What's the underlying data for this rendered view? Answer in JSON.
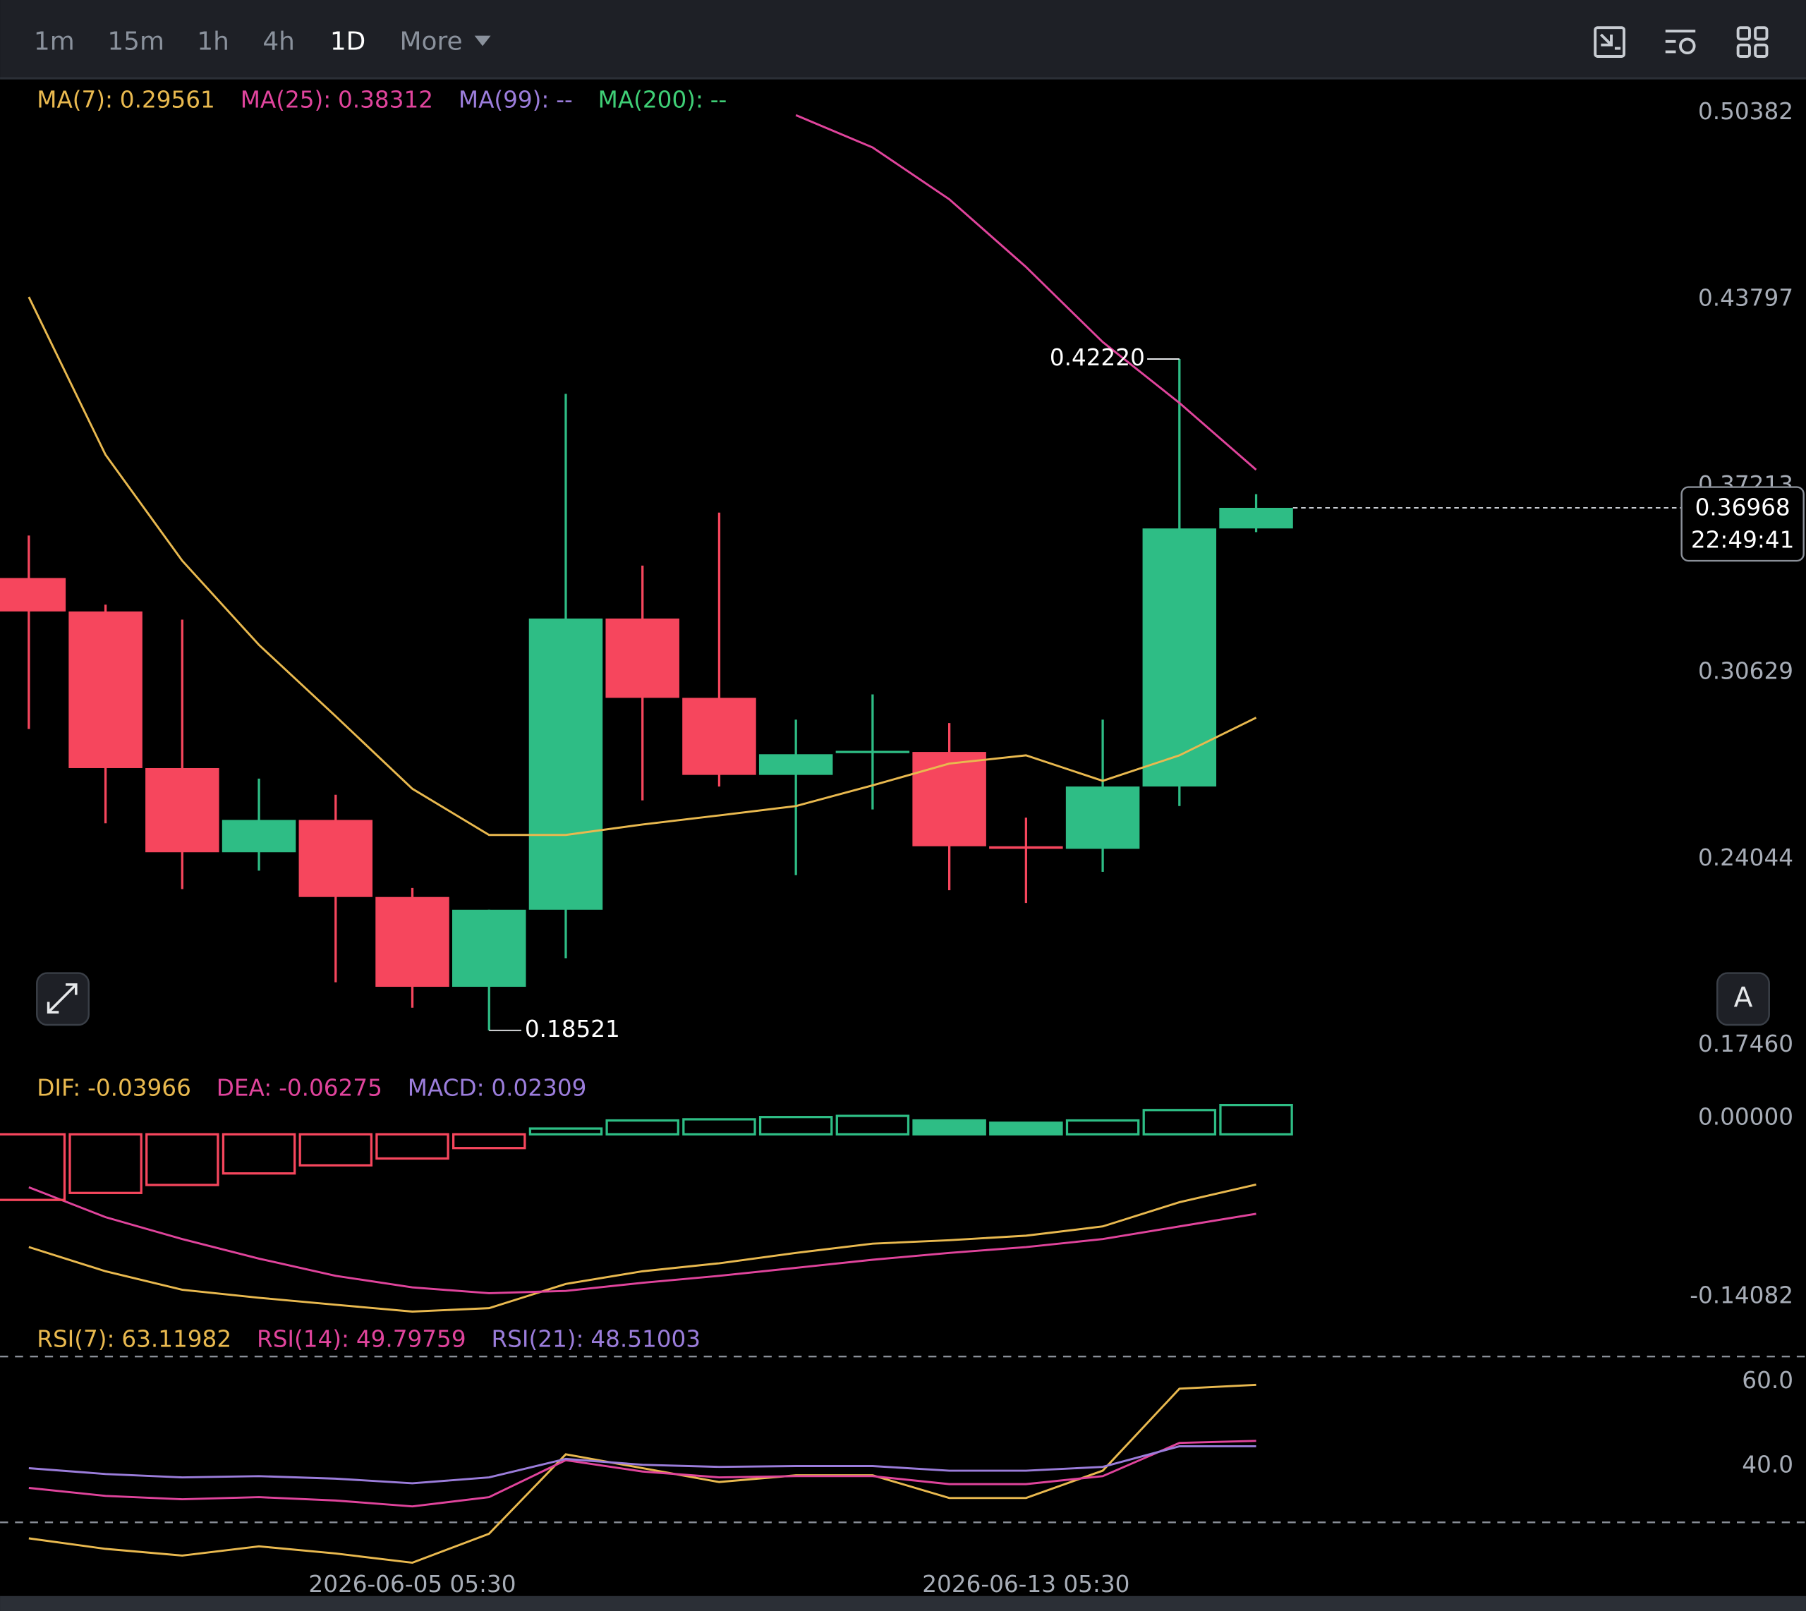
{
  "toolbar": {
    "intervals": [
      "1m",
      "15m",
      "1h",
      "4h",
      "1D",
      "More"
    ],
    "active": 4
  },
  "buttons": {
    "auto": "A"
  },
  "chart_data": [
    {
      "type": "candlestick",
      "categories": [
        null,
        null,
        null,
        null,
        null,
        "2026-06-05 05:30",
        null,
        null,
        null,
        null,
        null,
        null,
        null,
        "2026-06-13 05:30",
        null,
        null,
        null
      ],
      "open": [
        0.3449,
        0.3331,
        0.2778,
        0.2481,
        0.2595,
        0.2323,
        0.2006,
        0.2278,
        0.3306,
        0.3026,
        0.2754,
        0.2831,
        0.2835,
        0.2502,
        0.2493,
        0.2713,
        0.3624
      ],
      "high": [
        0.3599,
        0.3355,
        0.3302,
        0.2741,
        0.2684,
        0.2355,
        0.2278,
        0.4099,
        0.3493,
        0.368,
        0.2949,
        0.3038,
        0.2937,
        0.2603,
        0.2949,
        0.4222,
        0.3745
      ],
      "low": [
        0.2916,
        0.2583,
        0.2351,
        0.2416,
        0.2022,
        0.1932,
        0.18521,
        0.2107,
        0.2664,
        0.2713,
        0.24,
        0.2632,
        0.2347,
        0.2302,
        0.2412,
        0.2644,
        0.3611
      ],
      "close": [
        0.3331,
        0.2778,
        0.2481,
        0.2595,
        0.2323,
        0.2006,
        0.2278,
        0.3306,
        0.3026,
        0.2754,
        0.2827,
        0.2839,
        0.2502,
        0.2493,
        0.2713,
        0.3624,
        0.36968
      ],
      "up_color": "#2ebd85",
      "down_color": "#f6465d",
      "series": [
        {
          "name": "MA(7):",
          "color": "#e9b94f",
          "values": [
            0.4441,
            0.3884,
            0.351,
            0.3213,
            0.2961,
            0.2705,
            0.2542,
            0.2542,
            0.2579,
            0.2611,
            0.2644,
            0.2717,
            0.2794,
            0.2823,
            0.2733,
            0.2823,
            0.29561
          ]
        },
        {
          "name": "MA(25):",
          "color": "#e0449c",
          "values": [
            null,
            null,
            null,
            null,
            null,
            null,
            null,
            null,
            null,
            null,
            0.5083,
            0.4969,
            0.4786,
            0.4547,
            0.4282,
            0.4067,
            0.38312
          ]
        },
        {
          "name": "MA(99):",
          "color": "#9b7ddb",
          "values": [
            null,
            null,
            null,
            null,
            null,
            null,
            null,
            null,
            null,
            null,
            null,
            null,
            null,
            null,
            null,
            null,
            null
          ],
          "value_label": "--"
        },
        {
          "name": "MA(200):",
          "color": "#3fcf76",
          "values": [
            null,
            null,
            null,
            null,
            null,
            null,
            null,
            null,
            null,
            null,
            null,
            null,
            null,
            null,
            null,
            null,
            null
          ],
          "value_label": "--"
        }
      ],
      "annotations": [
        {
          "index": 15,
          "value": 0.4222,
          "label": "0.42220"
        },
        {
          "index": 6,
          "value": 0.18521
        }
      ],
      "countdown": "22:49:41",
      "ylim": [
        0.17293,
        0.52049
      ],
      "yticks": [
        0.50382,
        0.43797,
        0.37213,
        0.30629,
        0.24044,
        {
          "value": 0.1746,
          "label": "0.17460"
        }
      ]
    },
    {
      "type": "macd",
      "up_color": "#2ebd85",
      "down_color": "#f6465d",
      "series": [
        {
          "name": "DIF:",
          "color": "#e9b94f",
          "values": [
            -0.089,
            -0.1081,
            -0.1227,
            -0.129,
            -0.1345,
            -0.1399,
            -0.1372,
            -0.1181,
            -0.1081,
            -0.1018,
            -0.0936,
            -0.0863,
            -0.0836,
            -0.08,
            -0.0727,
            -0.0536,
            -0.03966
          ]
        },
        {
          "name": "DEA:",
          "color": "#e0449c",
          "values": [
            -0.0418,
            -0.0654,
            -0.0827,
            -0.0981,
            -0.1117,
            -0.1208,
            -0.1254,
            -0.1236,
            -0.1172,
            -0.1117,
            -0.1054,
            -0.099,
            -0.0936,
            -0.089,
            -0.0827,
            -0.0727,
            -0.06275
          ]
        },
        {
          "name": "MACD:",
          "color": "#9b7ddb",
          "bars": true,
          "values": [
            -0.0518,
            -0.0463,
            -0.04,
            -0.0309,
            -0.0245,
            -0.0191,
            -0.0109,
            0.0045,
            0.0109,
            0.0118,
            0.0136,
            0.0145,
            0.0109,
            0.0091,
            0.0109,
            0.0191,
            0.02309
          ]
        }
      ],
      "ylim": [
        -0.14991,
        0.04543
      ],
      "yticks": [
        {
          "value": 0,
          "label": "0.00000"
        },
        -0.14082
      ]
    },
    {
      "type": "line",
      "series": [
        {
          "name": "RSI(7):",
          "color": "#e9b94f",
          "values": [
            26.6,
            24.1,
            22.5,
            24.7,
            23.0,
            20.8,
            27.7,
            46.6,
            43.3,
            40.0,
            41.6,
            41.6,
            36.2,
            36.2,
            42.7,
            62.2,
            63.11982
          ]
        },
        {
          "name": "RSI(14):",
          "color": "#e0449c",
          "values": [
            38.6,
            36.7,
            35.9,
            36.4,
            35.6,
            34.2,
            36.4,
            45.2,
            42.5,
            41.1,
            41.4,
            41.4,
            39.5,
            39.5,
            41.4,
            49.3,
            49.79759
          ]
        },
        {
          "name": "RSI(21):",
          "color": "#9b7ddb",
          "values": [
            43.3,
            41.9,
            41.1,
            41.4,
            40.8,
            39.7,
            41.1,
            45.5,
            44.1,
            43.6,
            43.8,
            43.8,
            42.7,
            42.7,
            43.6,
            48.5,
            48.51003
          ]
        }
      ],
      "ylim": [
        18.63,
        77.53
      ],
      "yticks": [
        {
          "value": 60,
          "label": "60.0"
        },
        {
          "value": 40,
          "label": "40.0"
        }
      ]
    }
  ]
}
